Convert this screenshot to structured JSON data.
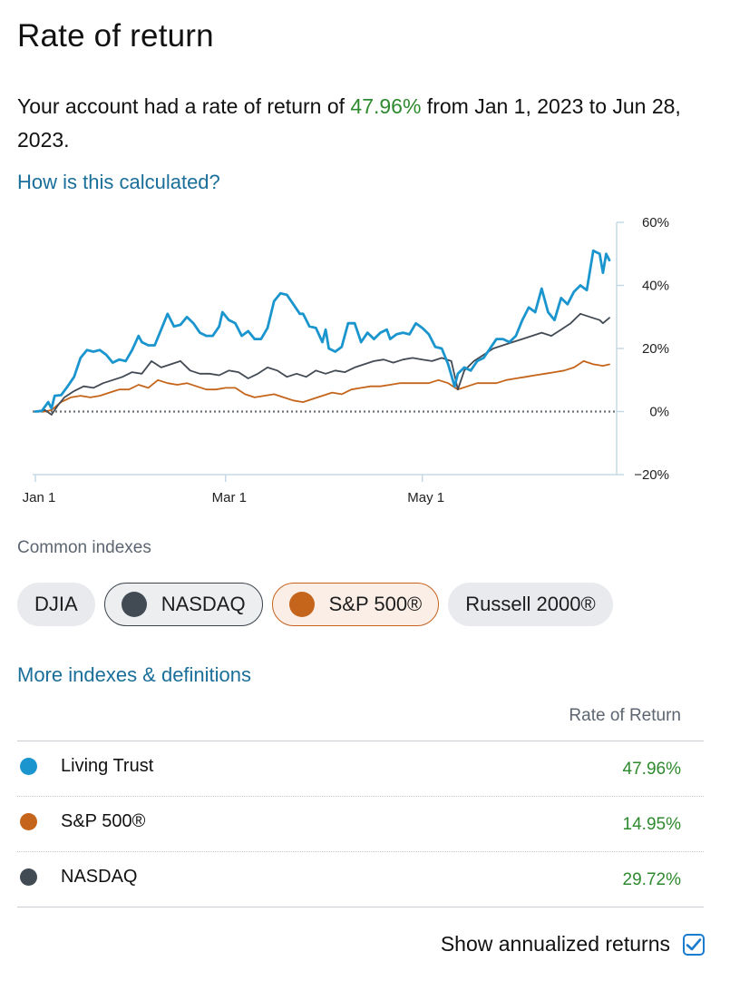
{
  "page": {
    "title": "Rate of return",
    "summary_prefix": "Your account had a rate of return of ",
    "summary_pct": "47.96%",
    "summary_suffix": " from Jan 1, 2023 to Jun 28, 2023.",
    "calc_link": "How is this calculated?"
  },
  "colors": {
    "account": "#1b95ce",
    "nasdaq": "#424a53",
    "sp500": "#c5651b",
    "positive": "#2e8a2e",
    "link": "#1a6e9a"
  },
  "chart_data": {
    "type": "line",
    "x_ticks": [
      "Jan 1",
      "Mar 1",
      "May 1"
    ],
    "y_ticks": [
      "60%",
      "40%",
      "20%",
      "0%",
      "−20%"
    ],
    "ylim": [
      -20,
      60
    ],
    "zero_line": "dotted",
    "x_range": [
      "2023-01-01",
      "2023-06-28"
    ],
    "series": [
      {
        "name": "Living Trust",
        "color": "#1b95ce",
        "points": [
          [
            "2023-01-01",
            0
          ],
          [
            "2023-01-03",
            0.2
          ],
          [
            "2023-01-05",
            3
          ],
          [
            "2023-01-06",
            1
          ],
          [
            "2023-01-07",
            5
          ],
          [
            "2023-01-09",
            5.2
          ],
          [
            "2023-01-11",
            8
          ],
          [
            "2023-01-13",
            11
          ],
          [
            "2023-01-15",
            17
          ],
          [
            "2023-01-17",
            19.5
          ],
          [
            "2023-01-19",
            19
          ],
          [
            "2023-01-21",
            19.5
          ],
          [
            "2023-01-23",
            18
          ],
          [
            "2023-01-25",
            15.5
          ],
          [
            "2023-01-27",
            16.5
          ],
          [
            "2023-01-29",
            16
          ],
          [
            "2023-01-31",
            19.5
          ],
          [
            "2023-02-02",
            24
          ],
          [
            "2023-02-03",
            22
          ],
          [
            "2023-02-05",
            21
          ],
          [
            "2023-02-07",
            21
          ],
          [
            "2023-02-09",
            26
          ],
          [
            "2023-02-11",
            31
          ],
          [
            "2023-02-13",
            27
          ],
          [
            "2023-02-15",
            27.5
          ],
          [
            "2023-02-17",
            30
          ],
          [
            "2023-02-19",
            28
          ],
          [
            "2023-02-21",
            25
          ],
          [
            "2023-02-23",
            24
          ],
          [
            "2023-02-25",
            24
          ],
          [
            "2023-02-27",
            27
          ],
          [
            "2023-02-28",
            31.5
          ],
          [
            "2023-03-02",
            29
          ],
          [
            "2023-03-04",
            28
          ],
          [
            "2023-03-06",
            24
          ],
          [
            "2023-03-08",
            25.5
          ],
          [
            "2023-03-10",
            23
          ],
          [
            "2023-03-12",
            23
          ],
          [
            "2023-03-14",
            26.5
          ],
          [
            "2023-03-16",
            35
          ],
          [
            "2023-03-18",
            37.5
          ],
          [
            "2023-03-20",
            37
          ],
          [
            "2023-03-22",
            34
          ],
          [
            "2023-03-24",
            31
          ],
          [
            "2023-03-25",
            31
          ],
          [
            "2023-03-27",
            27
          ],
          [
            "2023-03-29",
            26.5
          ],
          [
            "2023-03-31",
            22
          ],
          [
            "2023-04-01",
            26
          ],
          [
            "2023-04-02",
            20
          ],
          [
            "2023-04-04",
            19
          ],
          [
            "2023-04-06",
            20.5
          ],
          [
            "2023-04-08",
            28
          ],
          [
            "2023-04-10",
            28
          ],
          [
            "2023-04-12",
            22
          ],
          [
            "2023-04-14",
            25
          ],
          [
            "2023-04-16",
            23
          ],
          [
            "2023-04-18",
            25
          ],
          [
            "2023-04-20",
            26
          ],
          [
            "2023-04-21",
            23
          ],
          [
            "2023-04-23",
            24.5
          ],
          [
            "2023-04-25",
            25
          ],
          [
            "2023-04-27",
            24.5
          ],
          [
            "2023-04-29",
            28
          ],
          [
            "2023-05-01",
            26.5
          ],
          [
            "2023-05-03",
            24.5
          ],
          [
            "2023-05-05",
            20.5
          ],
          [
            "2023-05-07",
            20
          ],
          [
            "2023-05-09",
            15
          ],
          [
            "2023-05-11",
            8
          ],
          [
            "2023-05-12",
            12
          ],
          [
            "2023-05-14",
            14
          ],
          [
            "2023-05-16",
            13
          ],
          [
            "2023-05-18",
            16
          ],
          [
            "2023-05-20",
            17
          ],
          [
            "2023-05-22",
            20
          ],
          [
            "2023-05-24",
            23
          ],
          [
            "2023-05-26",
            23
          ],
          [
            "2023-05-28",
            22
          ],
          [
            "2023-05-30",
            24
          ],
          [
            "2023-06-01",
            29
          ],
          [
            "2023-06-03",
            33
          ],
          [
            "2023-06-05",
            31.5
          ],
          [
            "2023-06-07",
            39
          ],
          [
            "2023-06-09",
            31.5
          ],
          [
            "2023-06-11",
            29
          ],
          [
            "2023-06-13",
            36
          ],
          [
            "2023-06-15",
            34
          ],
          [
            "2023-06-17",
            38
          ],
          [
            "2023-06-19",
            40
          ],
          [
            "2023-06-21",
            38.5
          ],
          [
            "2023-06-23",
            51
          ],
          [
            "2023-06-25",
            50
          ],
          [
            "2023-06-26",
            44
          ],
          [
            "2023-06-27",
            50
          ],
          [
            "2023-06-28",
            47.96
          ]
        ]
      },
      {
        "name": "NASDAQ",
        "color": "#424a53",
        "points": [
          [
            "2023-01-01",
            0
          ],
          [
            "2023-01-04",
            0.5
          ],
          [
            "2023-01-06",
            -1
          ],
          [
            "2023-01-08",
            2
          ],
          [
            "2023-01-10",
            4.5
          ],
          [
            "2023-01-13",
            6.5
          ],
          [
            "2023-01-16",
            8
          ],
          [
            "2023-01-19",
            7.5
          ],
          [
            "2023-01-22",
            9
          ],
          [
            "2023-01-25",
            10
          ],
          [
            "2023-01-28",
            11
          ],
          [
            "2023-01-31",
            12.5
          ],
          [
            "2023-02-03",
            12
          ],
          [
            "2023-02-06",
            16
          ],
          [
            "2023-02-09",
            14
          ],
          [
            "2023-02-12",
            15
          ],
          [
            "2023-02-15",
            16
          ],
          [
            "2023-02-18",
            13
          ],
          [
            "2023-02-21",
            12
          ],
          [
            "2023-02-24",
            12
          ],
          [
            "2023-02-27",
            11.5
          ],
          [
            "2023-03-02",
            13
          ],
          [
            "2023-03-05",
            12.5
          ],
          [
            "2023-03-08",
            10.5
          ],
          [
            "2023-03-11",
            12
          ],
          [
            "2023-03-14",
            14
          ],
          [
            "2023-03-17",
            13
          ],
          [
            "2023-03-20",
            11
          ],
          [
            "2023-03-23",
            12
          ],
          [
            "2023-03-26",
            11
          ],
          [
            "2023-03-29",
            13
          ],
          [
            "2023-04-01",
            12
          ],
          [
            "2023-04-04",
            13
          ],
          [
            "2023-04-07",
            12.5
          ],
          [
            "2023-04-10",
            14
          ],
          [
            "2023-04-13",
            15
          ],
          [
            "2023-04-16",
            16
          ],
          [
            "2023-04-19",
            16.5
          ],
          [
            "2023-04-22",
            15.5
          ],
          [
            "2023-04-25",
            16.5
          ],
          [
            "2023-04-28",
            17
          ],
          [
            "2023-05-01",
            16.5
          ],
          [
            "2023-05-04",
            16
          ],
          [
            "2023-05-07",
            17
          ],
          [
            "2023-05-10",
            16
          ],
          [
            "2023-05-12",
            7
          ],
          [
            "2023-05-14",
            13
          ],
          [
            "2023-05-17",
            16
          ],
          [
            "2023-05-20",
            18
          ],
          [
            "2023-05-23",
            20
          ],
          [
            "2023-05-26",
            21
          ],
          [
            "2023-05-29",
            22
          ],
          [
            "2023-06-01",
            23
          ],
          [
            "2023-06-04",
            24
          ],
          [
            "2023-06-07",
            25
          ],
          [
            "2023-06-10",
            24
          ],
          [
            "2023-06-13",
            26
          ],
          [
            "2023-06-16",
            28
          ],
          [
            "2023-06-19",
            31
          ],
          [
            "2023-06-22",
            30
          ],
          [
            "2023-06-25",
            29
          ],
          [
            "2023-06-26",
            28
          ],
          [
            "2023-06-28",
            29.72
          ]
        ]
      },
      {
        "name": "S&P 500®",
        "color": "#c5651b",
        "points": [
          [
            "2023-01-01",
            0
          ],
          [
            "2023-01-04",
            0
          ],
          [
            "2023-01-06",
            0.5
          ],
          [
            "2023-01-09",
            3
          ],
          [
            "2023-01-12",
            4.5
          ],
          [
            "2023-01-15",
            5
          ],
          [
            "2023-01-18",
            4.5
          ],
          [
            "2023-01-21",
            5
          ],
          [
            "2023-01-24",
            6
          ],
          [
            "2023-01-27",
            7
          ],
          [
            "2023-01-30",
            7
          ],
          [
            "2023-02-02",
            8.5
          ],
          [
            "2023-02-05",
            7.5
          ],
          [
            "2023-02-08",
            10
          ],
          [
            "2023-02-11",
            9
          ],
          [
            "2023-02-14",
            8.5
          ],
          [
            "2023-02-17",
            9
          ],
          [
            "2023-02-20",
            8
          ],
          [
            "2023-02-23",
            7
          ],
          [
            "2023-02-26",
            7
          ],
          [
            "2023-03-01",
            7.5
          ],
          [
            "2023-03-04",
            7.5
          ],
          [
            "2023-03-07",
            5.5
          ],
          [
            "2023-03-10",
            4.5
          ],
          [
            "2023-03-13",
            5
          ],
          [
            "2023-03-16",
            5.5
          ],
          [
            "2023-03-19",
            4.5
          ],
          [
            "2023-03-22",
            3.5
          ],
          [
            "2023-03-25",
            3
          ],
          [
            "2023-03-28",
            4
          ],
          [
            "2023-03-31",
            5
          ],
          [
            "2023-04-03",
            6
          ],
          [
            "2023-04-06",
            5.5
          ],
          [
            "2023-04-09",
            7
          ],
          [
            "2023-04-12",
            7.5
          ],
          [
            "2023-04-15",
            8
          ],
          [
            "2023-04-18",
            8
          ],
          [
            "2023-04-21",
            8.5
          ],
          [
            "2023-04-24",
            9
          ],
          [
            "2023-04-27",
            9
          ],
          [
            "2023-04-30",
            9
          ],
          [
            "2023-05-03",
            9
          ],
          [
            "2023-05-06",
            10
          ],
          [
            "2023-05-09",
            9
          ],
          [
            "2023-05-12",
            7
          ],
          [
            "2023-05-15",
            8
          ],
          [
            "2023-05-18",
            9
          ],
          [
            "2023-05-21",
            9
          ],
          [
            "2023-05-24",
            9
          ],
          [
            "2023-05-27",
            10
          ],
          [
            "2023-05-30",
            10.5
          ],
          [
            "2023-06-02",
            11
          ],
          [
            "2023-06-05",
            11.5
          ],
          [
            "2023-06-08",
            12
          ],
          [
            "2023-06-11",
            12.5
          ],
          [
            "2023-06-14",
            13
          ],
          [
            "2023-06-17",
            14
          ],
          [
            "2023-06-20",
            16
          ],
          [
            "2023-06-23",
            15
          ],
          [
            "2023-06-26",
            14.5
          ],
          [
            "2023-06-28",
            14.95
          ]
        ]
      }
    ]
  },
  "indexes": {
    "label": "Common indexes",
    "chips": [
      {
        "label": "DJIA",
        "selected": false
      },
      {
        "label": "NASDAQ",
        "selected": true
      },
      {
        "label": "S&P 500®",
        "selected": true
      },
      {
        "label": "Russell 2000®",
        "selected": false
      }
    ],
    "more_link": "More indexes & definitions"
  },
  "table": {
    "header": "Rate of Return",
    "rows": [
      {
        "name": "Living Trust",
        "value": "47.96%",
        "color": "#1b95ce"
      },
      {
        "name": "S&P 500®",
        "value": "14.95%",
        "color": "#c5651b"
      },
      {
        "name": "NASDAQ",
        "value": "29.72%",
        "color": "#424a53"
      }
    ]
  },
  "footer": {
    "annualized_label": "Show annualized returns",
    "annualized_checked": true
  }
}
